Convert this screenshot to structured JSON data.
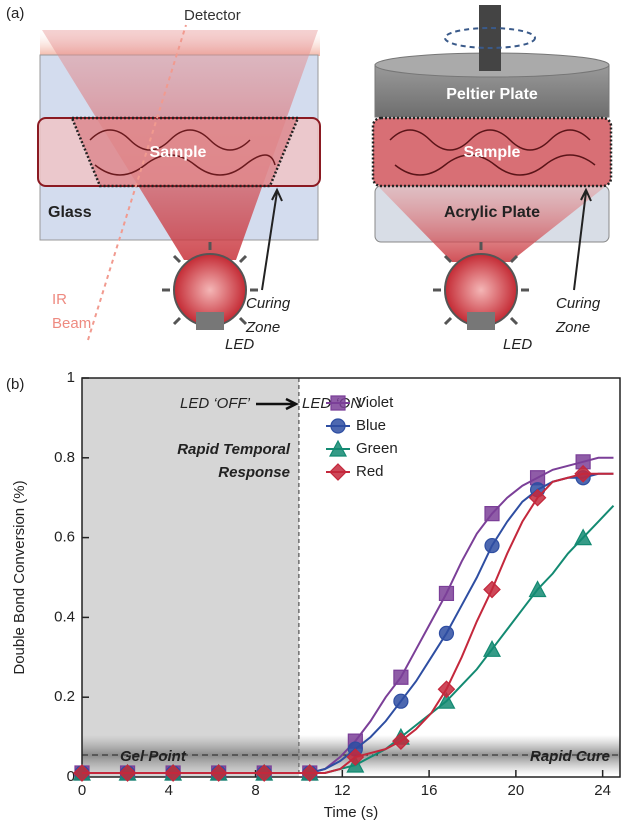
{
  "diagram": {
    "panel_label": "(a)",
    "detector": "Detector",
    "ir_beam": [
      "IR",
      "Beam"
    ],
    "left": {
      "sample": "Sample",
      "glass": "Glass",
      "led": "LED",
      "curing_zone": [
        "Curing",
        "Zone"
      ]
    },
    "right": {
      "peltier": "Peltier Plate",
      "sample": "Sample",
      "acrylic": "Acrylic Plate",
      "led": "LED",
      "curing_zone": [
        "Curing",
        "Zone"
      ]
    }
  },
  "chart_data": {
    "type": "line",
    "panel_label": "(b)",
    "x_label": "Time (s)",
    "y_label": "Double Bond Conversion (%)",
    "xlim": [
      0,
      24.8
    ],
    "ylim": [
      0,
      1
    ],
    "xticks": [
      0,
      4,
      8,
      12,
      16,
      20,
      24
    ],
    "yticks": [
      0,
      0.2,
      0.4,
      0.6,
      0.8,
      1
    ],
    "legend": "upper-right",
    "led_on": 10,
    "gel_point": 0.055,
    "annotations": {
      "led_off": "LED ‘OFF’",
      "led_on": "LED ‘ON’",
      "response": [
        "Rapid Temporal",
        "Response"
      ],
      "gel": "Gel Point",
      "cure": "Rapid Cure"
    },
    "x": [
      0,
      0.7,
      1.4,
      2.1,
      2.8,
      3.5,
      4.2,
      4.9,
      5.6,
      6.3,
      7,
      7.7,
      8.4,
      9.1,
      9.8,
      10.5,
      11.2,
      11.9,
      12.6,
      13.3,
      14,
      14.7,
      15.4,
      16.1,
      16.8,
      17.5,
      18.2,
      18.9,
      19.6,
      20.3,
      21,
      21.7,
      22.4,
      23.1,
      23.8,
      24.5
    ],
    "series": [
      {
        "name": "Violet",
        "color": "#7b3f98",
        "marker": "square",
        "values": [
          0.01,
          0.01,
          0.01,
          0.01,
          0.01,
          0.01,
          0.01,
          0.01,
          0.01,
          0.01,
          0.01,
          0.01,
          0.01,
          0.01,
          0.01,
          0.01,
          0.02,
          0.05,
          0.09,
          0.14,
          0.2,
          0.25,
          0.32,
          0.39,
          0.46,
          0.54,
          0.61,
          0.66,
          0.7,
          0.73,
          0.75,
          0.77,
          0.78,
          0.79,
          0.8,
          0.8
        ]
      },
      {
        "name": "Blue",
        "color": "#2e4ea2",
        "marker": "circle",
        "values": [
          0.01,
          0.01,
          0.01,
          0.01,
          0.01,
          0.01,
          0.01,
          0.01,
          0.01,
          0.01,
          0.01,
          0.01,
          0.01,
          0.01,
          0.01,
          0.01,
          0.02,
          0.04,
          0.07,
          0.1,
          0.14,
          0.19,
          0.24,
          0.3,
          0.36,
          0.43,
          0.5,
          0.58,
          0.64,
          0.69,
          0.72,
          0.74,
          0.75,
          0.75,
          0.76,
          0.76
        ]
      },
      {
        "name": "Green",
        "color": "#138a72",
        "marker": "triangle",
        "values": [
          0.01,
          0.01,
          0.01,
          0.01,
          0.01,
          0.01,
          0.01,
          0.01,
          0.01,
          0.01,
          0.01,
          0.01,
          0.01,
          0.01,
          0.01,
          0.01,
          0.01,
          0.02,
          0.03,
          0.05,
          0.07,
          0.1,
          0.13,
          0.16,
          0.19,
          0.23,
          0.27,
          0.32,
          0.37,
          0.42,
          0.47,
          0.51,
          0.56,
          0.6,
          0.64,
          0.68
        ]
      },
      {
        "name": "Red",
        "color": "#c4283c",
        "marker": "diamond",
        "values": [
          0.01,
          0.01,
          0.01,
          0.01,
          0.01,
          0.01,
          0.01,
          0.01,
          0.01,
          0.01,
          0.01,
          0.01,
          0.01,
          0.01,
          0.01,
          0.01,
          0.01,
          0.02,
          0.05,
          0.06,
          0.07,
          0.09,
          0.12,
          0.16,
          0.22,
          0.3,
          0.39,
          0.47,
          0.56,
          0.64,
          0.7,
          0.74,
          0.75,
          0.76,
          0.76,
          0.76
        ]
      }
    ]
  }
}
